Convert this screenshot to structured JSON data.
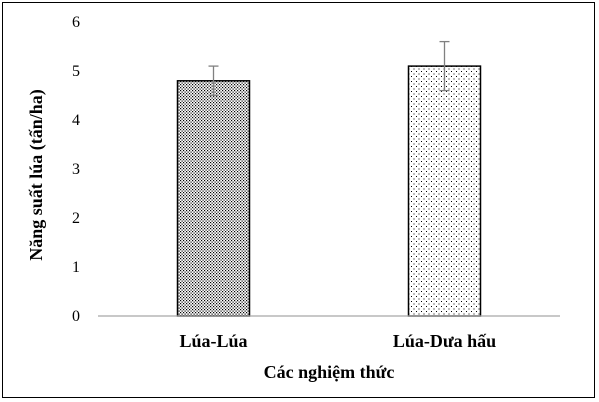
{
  "chart_data": {
    "type": "bar",
    "categories": [
      "Lúa-Lúa",
      "Lúa-Dưa hấu"
    ],
    "values": [
      4.8,
      5.1
    ],
    "error": [
      0.3,
      0.5
    ],
    "patterns": [
      "dense-dots",
      "sparse-dots"
    ],
    "xlabel": "Các nghiệm thức",
    "ylabel": "Năng suất lúa (tấn/ha)",
    "ylim": [
      0,
      6
    ],
    "yticks": [
      "0",
      "1",
      "2",
      "3",
      "4",
      "5",
      "6"
    ],
    "grid": false,
    "bar_edge_color": "#000000",
    "axis_color": "#a6a6a6",
    "error_color": "#808080"
  }
}
